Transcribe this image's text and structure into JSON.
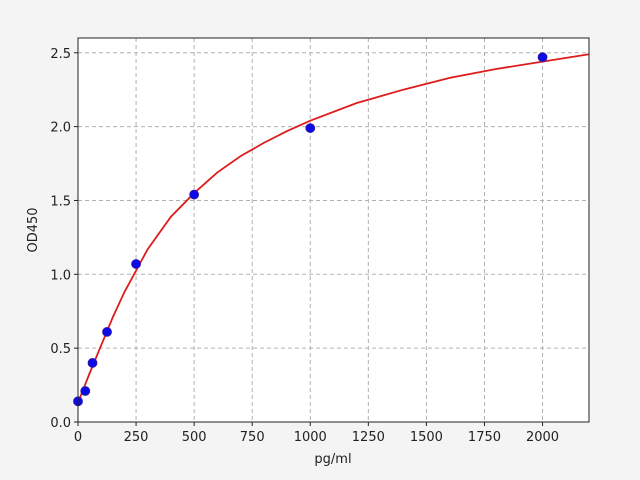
{
  "chart_data": {
    "type": "scatter",
    "xlabel": "pg/ml",
    "ylabel": "OD450",
    "xlim": [
      0,
      2200
    ],
    "xticks": [
      0,
      250,
      500,
      750,
      1000,
      1250,
      1500,
      1750,
      2000
    ],
    "ylim": [
      0,
      2.6
    ],
    "yticks": [
      {
        "value": 0,
        "label": "0.0"
      },
      0.5,
      {
        "value": 1,
        "label": "1.0"
      },
      1.5,
      {
        "value": 2,
        "label": "2.0"
      },
      2.5
    ],
    "grid": true,
    "series": [
      {
        "type": "scatter",
        "color": "#0a0ae6",
        "x": [
          0,
          31.25,
          62.5,
          125,
          250,
          500,
          1000,
          2000
        ],
        "values": [
          0.14,
          0.21,
          0.4,
          0.61,
          1.07,
          1.54,
          1.99,
          2.47
        ]
      },
      {
        "type": "line",
        "color": "#dd1c1c",
        "x": [
          0,
          50,
          100,
          150,
          200,
          300,
          400,
          500,
          600,
          700,
          800,
          900,
          1000,
          1200,
          1400,
          1600,
          1800,
          2000,
          2200
        ],
        "values": [
          0.13,
          0.33,
          0.52,
          0.71,
          0.88,
          1.17,
          1.39,
          1.55,
          1.69,
          1.8,
          1.89,
          1.97,
          2.04,
          2.16,
          2.25,
          2.33,
          2.39,
          2.44,
          2.49
        ]
      }
    ]
  }
}
